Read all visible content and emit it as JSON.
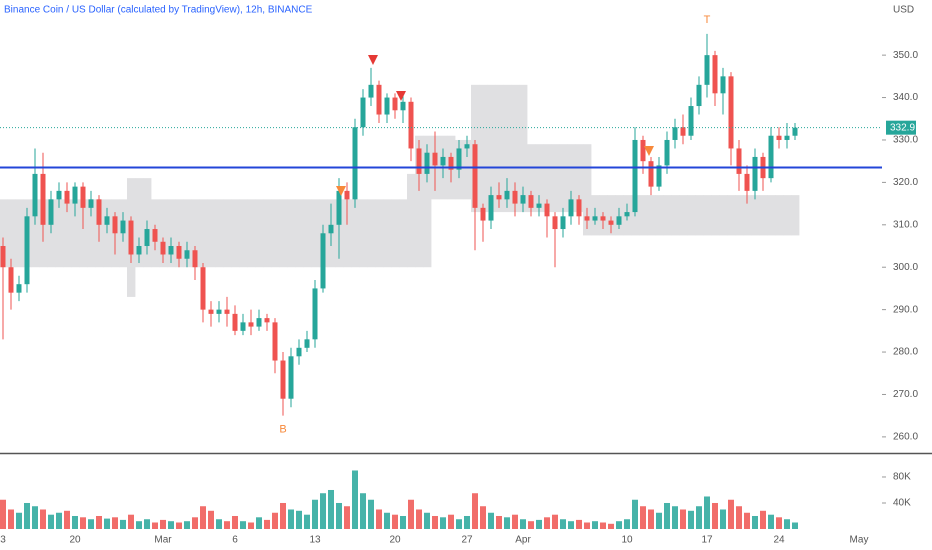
{
  "chart_data": {
    "type": "candlestick",
    "title": "Binance Coin / US Dollar (calculated by TradingView), 12h, BINANCE",
    "y_axis_label": "USD",
    "up_color": "#26a69a",
    "down_color": "#ef5350",
    "categories": [
      "3",
      null,
      null,
      null,
      null,
      null,
      null,
      null,
      null,
      "20",
      null,
      null,
      null,
      null,
      null,
      null,
      null,
      null,
      null,
      null,
      "Mar",
      null,
      null,
      null,
      null,
      null,
      null,
      null,
      null,
      "6",
      null,
      null,
      null,
      null,
      null,
      null,
      null,
      null,
      null,
      "13",
      null,
      null,
      null,
      null,
      null,
      null,
      null,
      null,
      null,
      "20",
      null,
      null,
      null,
      null,
      null,
      null,
      null,
      null,
      "27",
      null,
      null,
      null,
      null,
      null,
      null,
      "Apr",
      null,
      null,
      null,
      null,
      null,
      null,
      null,
      null,
      null,
      null,
      null,
      null,
      "10",
      null,
      null,
      null,
      null,
      null,
      null,
      null,
      null,
      null,
      "17",
      null,
      null,
      null,
      null,
      null,
      null,
      null,
      null,
      "24",
      null,
      null,
      null,
      null,
      null,
      null,
      null,
      null,
      null,
      "May"
    ],
    "open": [
      305,
      300,
      294,
      296,
      312,
      322,
      310,
      316,
      318,
      315,
      319,
      314,
      316,
      310,
      312,
      308,
      311,
      303,
      305,
      309,
      306,
      303,
      305,
      302,
      304,
      300,
      290,
      289,
      290,
      289,
      285,
      287,
      286,
      288,
      287,
      278,
      269,
      279,
      281,
      283,
      295,
      308,
      310,
      318,
      316,
      333,
      340,
      343,
      336,
      340,
      337,
      339,
      328,
      322,
      327,
      324,
      326,
      323,
      328,
      329,
      314,
      311,
      317,
      316,
      318,
      315,
      317,
      314,
      315,
      312,
      309,
      312,
      316,
      312,
      311,
      312,
      311,
      310,
      312,
      313,
      330,
      325,
      319,
      324,
      330,
      333,
      331,
      338,
      343,
      350,
      341,
      345,
      328,
      322,
      318,
      326,
      321,
      331,
      330,
      331,
      null,
      null,
      null,
      null,
      null,
      null,
      null,
      null
    ],
    "high": [
      307,
      302,
      298,
      314,
      328,
      327,
      318,
      320,
      320,
      320,
      320,
      318,
      317,
      314,
      313,
      313,
      312,
      307,
      311,
      310,
      307,
      307,
      306,
      306,
      305,
      301,
      292,
      292,
      293,
      291,
      289,
      290,
      290,
      289,
      288,
      280,
      281,
      283,
      285,
      297,
      310,
      315,
      321,
      320,
      335,
      342,
      347,
      344,
      341,
      341,
      341,
      340,
      330,
      329,
      332,
      328,
      327,
      330,
      331,
      330,
      315,
      319,
      320,
      321,
      320,
      319,
      318,
      317,
      316,
      313,
      314,
      318,
      317,
      314,
      314,
      313,
      312,
      314,
      315,
      333,
      331,
      326,
      326,
      332,
      335,
      336,
      340,
      345,
      355,
      351,
      347,
      346,
      330,
      324,
      328,
      327,
      333,
      333,
      334,
      334,
      null,
      null,
      null,
      null,
      null,
      null,
      null,
      null
    ],
    "low": [
      283,
      290,
      292,
      294,
      310,
      306,
      308,
      314,
      313,
      312,
      309,
      312,
      306,
      308,
      303,
      306,
      301,
      301,
      303,
      304,
      301,
      301,
      300,
      300,
      297,
      287,
      286,
      287,
      286,
      284,
      284,
      284,
      285,
      285,
      275,
      265,
      267,
      277,
      280,
      281,
      294,
      305,
      302,
      310,
      314,
      331,
      338,
      334,
      334,
      335,
      334,
      325,
      318,
      320,
      318,
      321,
      320,
      321,
      326,
      304,
      306,
      309,
      314,
      314,
      312,
      313,
      312,
      312,
      307,
      300,
      307,
      310,
      310,
      309,
      310,
      309,
      308,
      309,
      311,
      312,
      322,
      317,
      318,
      322,
      328,
      329,
      330,
      336,
      340,
      338,
      336,
      324,
      318,
      315,
      316,
      318,
      320,
      328,
      328,
      330,
      null,
      null,
      null,
      null,
      null,
      null,
      null,
      null
    ],
    "close": [
      300,
      294,
      296,
      312,
      322,
      310,
      316,
      318,
      315,
      319,
      314,
      316,
      310,
      312,
      308,
      311,
      303,
      305,
      309,
      306,
      303,
      305,
      302,
      304,
      300,
      290,
      289,
      290,
      289,
      285,
      287,
      286,
      288,
      287,
      278,
      269,
      279,
      281,
      283,
      295,
      308,
      310,
      318,
      316,
      333,
      340,
      343,
      336,
      340,
      337,
      339,
      328,
      322,
      327,
      324,
      326,
      323,
      328,
      329,
      314,
      311,
      317,
      316,
      318,
      315,
      317,
      314,
      315,
      312,
      309,
      312,
      316,
      312,
      311,
      312,
      311,
      310,
      312,
      313,
      330,
      325,
      319,
      324,
      330,
      333,
      331,
      338,
      343,
      350,
      341,
      345,
      328,
      322,
      318,
      326,
      321,
      331,
      330,
      331,
      332.9,
      null,
      null,
      null,
      null,
      null,
      null,
      null,
      null
    ],
    "volume": [
      45000,
      30000,
      25000,
      40000,
      35000,
      30000,
      22000,
      25000,
      28000,
      20000,
      18000,
      15000,
      20000,
      16000,
      18000,
      14000,
      22000,
      12000,
      15000,
      10000,
      14000,
      12000,
      10000,
      12000,
      18000,
      35000,
      28000,
      15000,
      12000,
      20000,
      12000,
      10000,
      18000,
      14000,
      25000,
      40000,
      30000,
      28000,
      22000,
      45000,
      55000,
      60000,
      40000,
      35000,
      90000,
      55000,
      45000,
      30000,
      25000,
      22000,
      20000,
      45000,
      30000,
      25000,
      20000,
      18000,
      22000,
      15000,
      20000,
      55000,
      35000,
      25000,
      20000,
      18000,
      22000,
      15000,
      12000,
      14000,
      18000,
      22000,
      15000,
      12000,
      14000,
      10000,
      12000,
      10000,
      8000,
      12000,
      15000,
      45000,
      35000,
      30000,
      25000,
      40000,
      35000,
      30000,
      28000,
      35000,
      50000,
      40000,
      30000,
      45000,
      35000,
      25000,
      20000,
      28000,
      22000,
      18000,
      15000,
      10000,
      null,
      null,
      null,
      null,
      null,
      null,
      null,
      null
    ],
    "band_upper": [
      316,
      316,
      316,
      316,
      316,
      316,
      316,
      316,
      316,
      316,
      316,
      316,
      316,
      316,
      316,
      316,
      321,
      321,
      321,
      316,
      316,
      316,
      316,
      316,
      316,
      316,
      316,
      316,
      316,
      316,
      316,
      316,
      316,
      316,
      316,
      316,
      316,
      316,
      316,
      316,
      316,
      316,
      316,
      316,
      316,
      316,
      316,
      316,
      316,
      316,
      316,
      322,
      331,
      331,
      331,
      331,
      331,
      330,
      330,
      343,
      343,
      343,
      343,
      343,
      343,
      343,
      329,
      329,
      329,
      329,
      329,
      329,
      329,
      329,
      317,
      317,
      317,
      317,
      317,
      317,
      317,
      317,
      317,
      317,
      317,
      317,
      317,
      317,
      317,
      317,
      317,
      317,
      317,
      317,
      317,
      317,
      317,
      317,
      317,
      317,
      null,
      null,
      null,
      null,
      null,
      null,
      null,
      null
    ],
    "band_lower": [
      300,
      300,
      300,
      300,
      300,
      300,
      300,
      300,
      300,
      300,
      300,
      300,
      300,
      300,
      300,
      300,
      293,
      300,
      300,
      300,
      300,
      300,
      300,
      300,
      300,
      300,
      300,
      300,
      300,
      300,
      300,
      300,
      300,
      300,
      300,
      300,
      300,
      300,
      300,
      300,
      300,
      300,
      300,
      300,
      300,
      300,
      300,
      300,
      300,
      300,
      300,
      300,
      300,
      300,
      316,
      316,
      316,
      316,
      316,
      313,
      313,
      313,
      313,
      313,
      313,
      313,
      313,
      313,
      313,
      313,
      313,
      313,
      313,
      307.5,
      307.5,
      307.5,
      307.5,
      307.5,
      307.5,
      307.5,
      307.5,
      307.5,
      307.5,
      307.5,
      307.5,
      307.5,
      307.5,
      307.5,
      307.5,
      307.5,
      307.5,
      307.5,
      307.5,
      307.5,
      307.5,
      307.5,
      307.5,
      307.5,
      307.5,
      307.5,
      null,
      null,
      null,
      null,
      null,
      null,
      null,
      null
    ],
    "hline": 323.5,
    "annotations": [
      {
        "label": "B",
        "index": 35,
        "color": "#f7893b"
      },
      {
        "label": "T",
        "index": 88,
        "color": "#f7893b"
      }
    ],
    "ylim": [
      256.2,
      363
    ],
    "yticks": [
      {
        "value": 260,
        "label": "260.0"
      },
      {
        "value": 270,
        "label": "270.0"
      },
      {
        "value": 280,
        "label": "280.0"
      },
      {
        "value": 290,
        "label": "290.0"
      },
      {
        "value": 300,
        "label": "300.0"
      },
      {
        "value": 310,
        "label": "310.0"
      },
      {
        "value": 320,
        "label": "320.0"
      },
      {
        "value": 330,
        "label": "330.0"
      },
      {
        "value": 340,
        "label": "340.0"
      },
      {
        "value": 350,
        "label": "350.0"
      }
    ],
    "vlim": [
      0,
      113800
    ],
    "vticks": [
      {
        "value": 40000,
        "label": "40K"
      },
      {
        "value": 80000,
        "label": "80K"
      }
    ]
  }
}
